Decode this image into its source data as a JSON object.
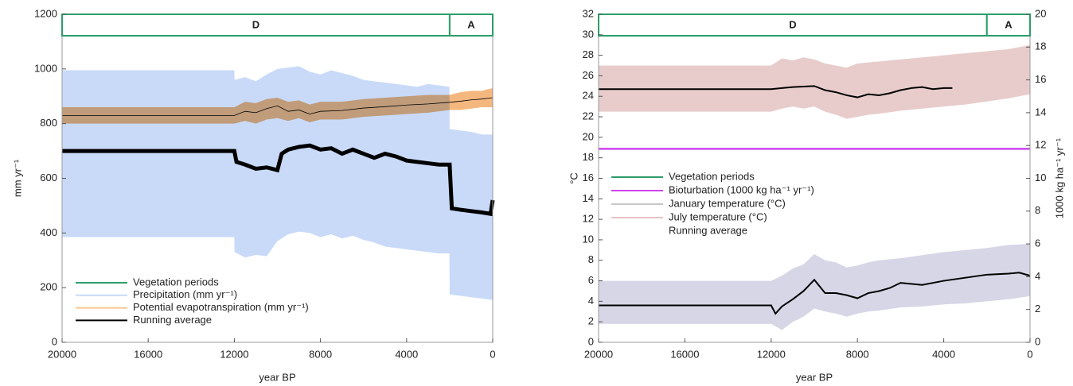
{
  "chart_data": [
    {
      "type": "line",
      "x_label": "year BP",
      "y_label": "mm yr⁻¹",
      "xlim": [
        20000,
        0
      ],
      "xticks": [
        20000,
        16000,
        12000,
        8000,
        4000,
        0
      ],
      "ylim": [
        0,
        1200
      ],
      "yticks": [
        0,
        200,
        400,
        600,
        800,
        1000,
        1200
      ],
      "periods": [
        {
          "label": "D",
          "start": 20000,
          "end": 2000
        },
        {
          "label": "A",
          "start": 2000,
          "end": 0
        }
      ],
      "period_color": "#2e9e6a",
      "legend_corner": "bottom-left",
      "legend": [
        {
          "label": "Vegetation periods",
          "color": "#2e9e6a"
        },
        {
          "label": "Precipitation (mm yr⁻¹)",
          "color": "#c9daf8"
        },
        {
          "label": "Potential evapotranspiration (mm yr⁻¹)",
          "color": "#f8c790"
        },
        {
          "label": "Running average",
          "color": "#000000"
        }
      ],
      "series": [
        {
          "kind": "band",
          "color": "#c9daf8",
          "x": [
            20000,
            12000,
            11990,
            11500,
            11000,
            10500,
            10000,
            9500,
            9000,
            8500,
            8000,
            7500,
            7000,
            6500,
            6000,
            5500,
            5000,
            4500,
            4000,
            3500,
            3000,
            2500,
            2010,
            2000,
            1500,
            1000,
            500,
            0
          ],
          "low": [
            385,
            385,
            330,
            310,
            320,
            315,
            370,
            395,
            405,
            400,
            385,
            395,
            380,
            390,
            375,
            365,
            350,
            345,
            340,
            335,
            330,
            325,
            325,
            175,
            170,
            165,
            160,
            155
          ],
          "high": [
            995,
            995,
            960,
            970,
            955,
            980,
            1000,
            1005,
            1010,
            990,
            980,
            995,
            985,
            975,
            960,
            955,
            950,
            945,
            940,
            935,
            945,
            940,
            935,
            780,
            775,
            770,
            760,
            760
          ]
        },
        {
          "kind": "band",
          "color": "#f4b77e",
          "x": [
            20000,
            12000,
            11500,
            11000,
            10500,
            10000,
            9500,
            9000,
            8500,
            8000,
            7000,
            6000,
            5000,
            4000,
            3000,
            2000,
            1500,
            1000,
            500,
            0
          ],
          "low": [
            800,
            800,
            810,
            800,
            815,
            820,
            810,
            820,
            805,
            815,
            815,
            825,
            830,
            835,
            840,
            850,
            850,
            855,
            860,
            860
          ],
          "high": [
            860,
            860,
            880,
            875,
            890,
            895,
            880,
            885,
            870,
            880,
            880,
            890,
            895,
            900,
            905,
            905,
            915,
            920,
            920,
            930
          ]
        },
        {
          "kind": "line",
          "color": "#000000",
          "line_width": 5,
          "x": [
            20000,
            12000,
            11900,
            11500,
            11000,
            10500,
            10000,
            9800,
            9500,
            9000,
            8500,
            8000,
            7500,
            7000,
            6500,
            6000,
            5500,
            5000,
            4500,
            4000,
            3500,
            3000,
            2500,
            2000,
            1900,
            1500,
            1000,
            500,
            100,
            0
          ],
          "values": [
            700,
            700,
            660,
            650,
            635,
            640,
            630,
            690,
            705,
            715,
            720,
            705,
            710,
            690,
            705,
            690,
            675,
            690,
            680,
            665,
            660,
            655,
            650,
            650,
            490,
            485,
            480,
            475,
            470,
            520
          ]
        },
        {
          "kind": "line",
          "color": "#000000",
          "line_width": 0.8,
          "x": [
            20000,
            12000,
            11500,
            11000,
            10500,
            10000,
            9500,
            9000,
            8500,
            8000,
            7000,
            6000,
            5000,
            4000,
            3000,
            2000,
            1500,
            1000,
            500,
            0
          ],
          "values": [
            830,
            830,
            845,
            840,
            855,
            865,
            845,
            850,
            835,
            845,
            848,
            857,
            862,
            868,
            872,
            878,
            882,
            887,
            890,
            895
          ]
        }
      ]
    },
    {
      "type": "line",
      "x_label": "year BP",
      "y_label": "°C",
      "y2_label": "1000 kg ha⁻¹ yr⁻¹",
      "xlim": [
        20000,
        0
      ],
      "xticks": [
        20000,
        16000,
        12000,
        8000,
        4000,
        0
      ],
      "ylim": [
        0,
        32
      ],
      "yticks": [
        0,
        2,
        4,
        6,
        8,
        10,
        12,
        14,
        16,
        18,
        20,
        22,
        24,
        26,
        28,
        30,
        32
      ],
      "y2lim": [
        0,
        20
      ],
      "y2ticks": [
        0,
        2,
        4,
        6,
        8,
        10,
        12,
        14,
        16,
        18,
        20
      ],
      "periods": [
        {
          "label": "D",
          "start": 20000,
          "end": 2000
        },
        {
          "label": "A",
          "start": 2000,
          "end": 0
        }
      ],
      "period_color": "#2e9e6a",
      "legend_corner": "center-left",
      "legend": [
        {
          "label": "Vegetation periods",
          "color": "#2e9e6a"
        },
        {
          "label": "Bioturbation (1000 kg ha⁻¹ yr⁻¹)",
          "color": "#cc44ee"
        },
        {
          "label": "January temperature (°C)",
          "color": "#c8c8c8"
        },
        {
          "label": "July temperature (°C)",
          "color": "#e6c4c4"
        },
        {
          "label": "Running average"
        }
      ],
      "series": [
        {
          "kind": "band",
          "color": "#e8cccc",
          "x": [
            20000,
            12000,
            11500,
            11000,
            10500,
            10000,
            9500,
            9000,
            8500,
            8000,
            7500,
            7000,
            6000,
            5000,
            4000,
            3000,
            2000,
            1000,
            0
          ],
          "low": [
            22.5,
            22.5,
            22.8,
            23,
            22.8,
            23,
            22.5,
            22.2,
            21.8,
            22,
            22.2,
            22.3,
            22.6,
            22.8,
            23,
            23.2,
            23.5,
            23.8,
            24.2
          ],
          "high": [
            27,
            27,
            27.7,
            27.5,
            27.8,
            27.6,
            27.2,
            27,
            26.8,
            27.2,
            27.3,
            27.4,
            27.6,
            27.8,
            28,
            28.2,
            28.4,
            28.6,
            29
          ]
        },
        {
          "kind": "band",
          "color": "#d6d6e6",
          "x": [
            20000,
            12000,
            11500,
            11000,
            10500,
            10000,
            9500,
            9000,
            8500,
            8000,
            7500,
            7000,
            6000,
            5000,
            4000,
            3000,
            2000,
            1000,
            0
          ],
          "low": [
            1.8,
            1.8,
            1.2,
            2,
            2.5,
            3.3,
            3,
            2.8,
            2.5,
            2.8,
            3,
            3.1,
            3.4,
            3.5,
            3.7,
            3.8,
            4,
            4.2,
            4.5
          ],
          "high": [
            6,
            6,
            6.5,
            7.2,
            7.6,
            8.6,
            8,
            7.8,
            7.3,
            7.5,
            7.8,
            8,
            8.2,
            8.5,
            8.8,
            9,
            9.2,
            9.5,
            9.6
          ]
        },
        {
          "kind": "line",
          "color": "#cc44ee",
          "line_width": 2.5,
          "axis": "y2",
          "x": [
            20000,
            0
          ],
          "values": [
            11.8,
            11.8
          ]
        },
        {
          "kind": "line",
          "color": "#000000",
          "line_width": 2,
          "x": [
            20000,
            12000,
            11500,
            11000,
            10000,
            9500,
            9000,
            8500,
            8000,
            7500,
            7000,
            6500,
            6000,
            5500,
            5000,
            4500,
            4000,
            3600
          ],
          "values": [
            24.7,
            24.7,
            24.8,
            24.9,
            25,
            24.6,
            24.4,
            24.1,
            23.9,
            24.2,
            24.1,
            24.3,
            24.6,
            24.8,
            24.9,
            24.7,
            24.8,
            24.8
          ]
        },
        {
          "kind": "line",
          "color": "#000000",
          "line_width": 2,
          "x": [
            20000,
            12000,
            11800,
            11500,
            11000,
            10500,
            10000,
            9500,
            9000,
            8500,
            8000,
            7500,
            7000,
            6500,
            6000,
            5000,
            4000,
            3000,
            2000,
            1000,
            500,
            0
          ],
          "values": [
            3.6,
            3.6,
            2.8,
            3.5,
            4.2,
            5,
            6.1,
            4.8,
            4.8,
            4.6,
            4.3,
            4.8,
            5,
            5.3,
            5.8,
            5.6,
            6,
            6.3,
            6.6,
            6.7,
            6.8,
            6.5
          ]
        }
      ]
    }
  ]
}
